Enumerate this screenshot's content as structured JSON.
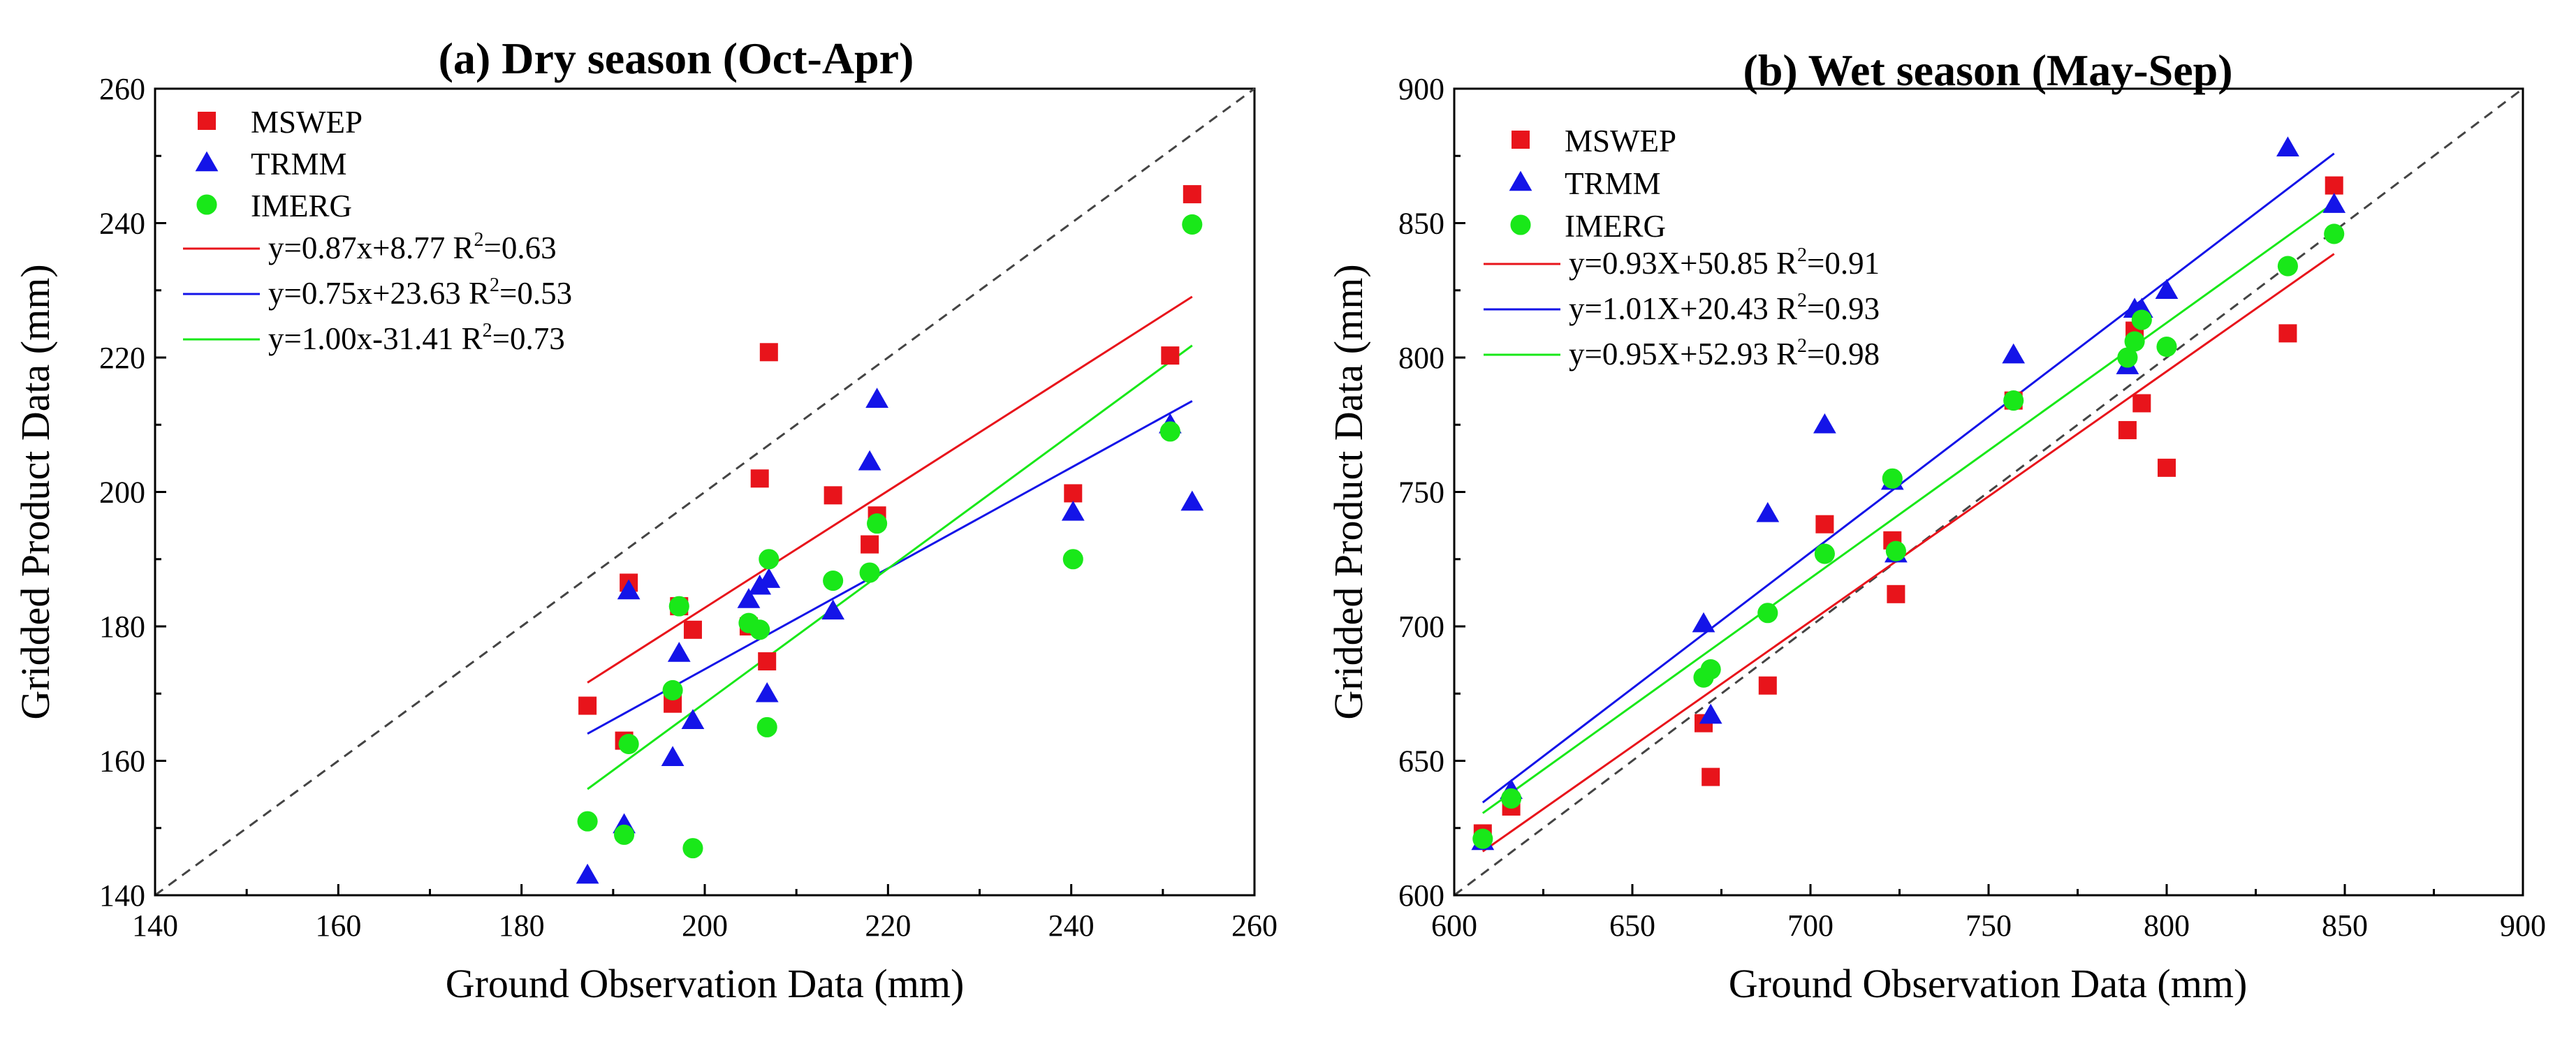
{
  "chart_data": [
    {
      "type": "scatter",
      "title": "(a) Dry season (Oct-Apr)",
      "xlabel": "Ground Observation Data (mm)",
      "ylabel": "Gridded Product Data (mm)",
      "xlim": [
        140,
        260
      ],
      "ylim": [
        140,
        260
      ],
      "xticks": [
        140,
        160,
        180,
        200,
        220,
        240,
        260
      ],
      "yticks": [
        140,
        160,
        180,
        200,
        220,
        240,
        260
      ],
      "reference_line": "1:1",
      "series": [
        {
          "name": "MSWEP",
          "color": "#e8141b",
          "marker": "square",
          "points": [
            [
              187.2,
              168.2
            ],
            [
              191.2,
              163.0
            ],
            [
              191.7,
              186.5
            ],
            [
              197.2,
              183.0
            ],
            [
              196.5,
              168.5
            ],
            [
              198.7,
              179.5
            ],
            [
              204.8,
              180.0
            ],
            [
              206.0,
              202.0
            ],
            [
              206.8,
              174.8
            ],
            [
              207.0,
              220.8
            ],
            [
              214.0,
              199.5
            ],
            [
              218.0,
              192.2
            ],
            [
              218.8,
              196.5
            ],
            [
              240.2,
              199.8
            ],
            [
              250.8,
              220.3
            ],
            [
              253.2,
              244.3
            ]
          ]
        },
        {
          "name": "TRMM",
          "color": "#1414e8",
          "marker": "triangle",
          "points": [
            [
              187.2,
              143.0
            ],
            [
              191.2,
              150.5
            ],
            [
              191.7,
              185.3
            ],
            [
              197.2,
              176.0
            ],
            [
              196.5,
              160.5
            ],
            [
              198.7,
              166.0
            ],
            [
              204.8,
              184.0
            ],
            [
              206.0,
              186.0
            ],
            [
              206.8,
              170.0
            ],
            [
              207.0,
              187.0
            ],
            [
              214.0,
              182.3
            ],
            [
              218.0,
              204.5
            ],
            [
              218.8,
              213.8
            ],
            [
              240.2,
              197.0
            ],
            [
              250.8,
              210.0
            ],
            [
              253.2,
              198.5
            ]
          ]
        },
        {
          "name": "IMERG",
          "color": "#19e819",
          "marker": "circle",
          "points": [
            [
              187.2,
              151.0
            ],
            [
              191.2,
              149.0
            ],
            [
              191.7,
              162.5
            ],
            [
              197.2,
              183.0
            ],
            [
              196.5,
              170.5
            ],
            [
              198.7,
              147.0
            ],
            [
              204.8,
              180.5
            ],
            [
              206.0,
              179.5
            ],
            [
              206.8,
              165.0
            ],
            [
              207.0,
              190.0
            ],
            [
              214.0,
              186.8
            ],
            [
              218.0,
              188.0
            ],
            [
              218.8,
              195.3
            ],
            [
              240.2,
              190.0
            ],
            [
              250.8,
              209.0
            ],
            [
              253.2,
              239.8
            ]
          ]
        }
      ],
      "fits": [
        {
          "label": "y=0.87x+8.77  R",
          "r2": "=0.63",
          "color": "#e8141b",
          "slope": 0.87,
          "intercept": 8.77,
          "x_range": [
            187.2,
            253.2
          ]
        },
        {
          "label": "y=0.75x+23.63  R",
          "r2": "=0.53",
          "color": "#1414e8",
          "slope": 0.75,
          "intercept": 23.63,
          "x_range": [
            187.2,
            253.2
          ]
        },
        {
          "label": "y=1.00x-31.41  R",
          "r2": "=0.73",
          "color": "#19e819",
          "slope": 1.0,
          "intercept": -31.41,
          "x_range": [
            187.2,
            253.2
          ]
        }
      ]
    },
    {
      "type": "scatter",
      "title": "(b) Wet season (May-Sep)",
      "xlabel": "Ground Observation Data (mm)",
      "ylabel": "Gridded Product Data (mm)",
      "xlim": [
        600,
        900
      ],
      "ylim": [
        600,
        900
      ],
      "xticks": [
        600,
        650,
        700,
        750,
        800,
        850,
        900
      ],
      "yticks": [
        600,
        650,
        700,
        750,
        800,
        850,
        900
      ],
      "reference_line": "1:1",
      "series": [
        {
          "name": "MSWEP",
          "color": "#e8141b",
          "marker": "square",
          "points": [
            [
              608,
              623
            ],
            [
              616,
              633
            ],
            [
              670,
              664
            ],
            [
              672,
              644
            ],
            [
              688,
              678
            ],
            [
              704,
              738
            ],
            [
              723,
              732
            ],
            [
              724,
              712
            ],
            [
              757,
              784
            ],
            [
              789,
              773
            ],
            [
              791,
              810
            ],
            [
              793,
              783
            ],
            [
              800,
              759
            ],
            [
              834,
              809
            ],
            [
              847,
              864
            ]
          ]
        },
        {
          "name": "TRMM",
          "color": "#1414e8",
          "marker": "triangle",
          "points": [
            [
              608,
              620
            ],
            [
              616,
              639
            ],
            [
              670,
              701
            ],
            [
              672,
              667
            ],
            [
              688,
              742
            ],
            [
              704,
              775
            ],
            [
              723,
              754
            ],
            [
              724,
              727
            ],
            [
              757,
              801
            ],
            [
              789,
              797
            ],
            [
              791,
              818
            ],
            [
              793,
              818
            ],
            [
              800,
              825
            ],
            [
              834,
              878
            ],
            [
              847,
              857
            ]
          ]
        },
        {
          "name": "IMERG",
          "color": "#19e819",
          "marker": "circle",
          "points": [
            [
              608,
              621
            ],
            [
              616,
              636
            ],
            [
              670,
              681
            ],
            [
              672,
              684
            ],
            [
              688,
              705
            ],
            [
              704,
              727
            ],
            [
              723,
              755
            ],
            [
              724,
              728
            ],
            [
              757,
              784
            ],
            [
              789,
              800
            ],
            [
              791,
              806
            ],
            [
              793,
              814
            ],
            [
              800,
              804
            ],
            [
              834,
              834
            ],
            [
              847,
              846
            ]
          ]
        }
      ],
      "fits": [
        {
          "label": "y=0.93X+50.85  R",
          "r2": "=0.91",
          "color": "#e8141b",
          "slope": 0.93,
          "intercept": 50.85,
          "x_range": [
            608,
            847
          ]
        },
        {
          "label": "y=1.01X+20.43  R",
          "r2": "=0.93",
          "color": "#1414e8",
          "slope": 1.01,
          "intercept": 20.43,
          "x_range": [
            608,
            847
          ]
        },
        {
          "label": "y=0.95X+52.93  R",
          "r2": "=0.98",
          "color": "#19e819",
          "slope": 0.95,
          "intercept": 52.93,
          "x_range": [
            608,
            847
          ]
        }
      ]
    }
  ]
}
